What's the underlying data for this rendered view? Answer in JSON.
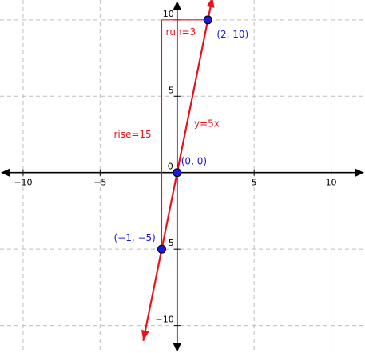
{
  "chart_data": {
    "type": "line",
    "title": "",
    "xlabel": "",
    "ylabel": "",
    "xlim": [
      -11.5,
      12.2
    ],
    "ylim": [
      -11.8,
      11.3
    ],
    "grid": true,
    "grid_step": 5,
    "x_ticks": [
      {
        "value": -10,
        "label": "−10"
      },
      {
        "value": -5,
        "label": "−5"
      },
      {
        "value": 5,
        "label": "5"
      },
      {
        "value": 10,
        "label": "10"
      }
    ],
    "y_ticks": [
      {
        "value": 10,
        "label": "10"
      },
      {
        "value": 5,
        "label": "5"
      },
      {
        "value": -5,
        "label": "−5"
      },
      {
        "value": -10,
        "label": "−10"
      }
    ],
    "origin_label": "0",
    "series": [
      {
        "name": "y=5x",
        "color": "#e8141b",
        "x": [
          -2.2,
          2.3
        ],
        "y": [
          -11,
          11.5
        ]
      }
    ],
    "points": [
      {
        "x": 2,
        "y": 10,
        "label": "(2, 10)"
      },
      {
        "x": 0,
        "y": 0,
        "label": "(0, 0)"
      },
      {
        "x": -1,
        "y": -5,
        "label": "(−1, −5)"
      }
    ],
    "point_color": "#1a1adb",
    "slope_triangle": {
      "from": {
        "x": -1,
        "y": -5
      },
      "to": {
        "x": 2,
        "y": 10
      },
      "color": "#e8141b",
      "run_label": "run=3",
      "rise_label": "rise=15"
    },
    "line_label": "y=5x"
  }
}
